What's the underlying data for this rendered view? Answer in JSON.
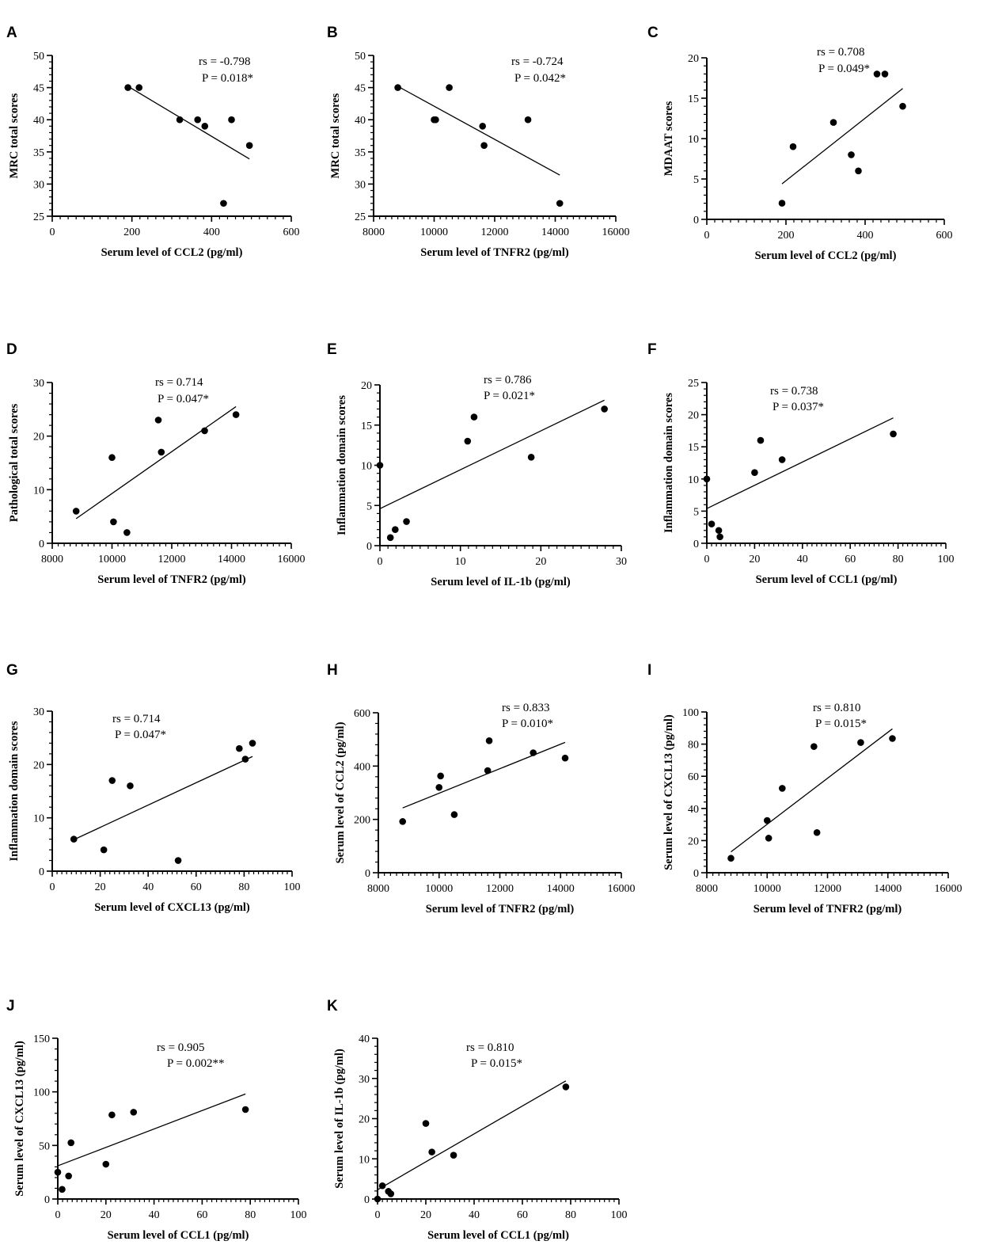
{
  "chart_data": [
    {
      "type": "scatter",
      "panel": "A",
      "xlabel": "Serum level of CCL2 (pg/ml)",
      "ylabel": "MRC total scores",
      "xlim": [
        0,
        600
      ],
      "ylim": [
        25,
        50
      ],
      "xticks": [
        0,
        200,
        400,
        600
      ],
      "yticks": [
        25,
        30,
        35,
        40,
        45,
        50
      ],
      "x": [
        190,
        218,
        320,
        365,
        383,
        450,
        495,
        430
      ],
      "y": [
        45,
        45,
        40,
        40,
        39,
        40,
        36,
        27
      ],
      "fit": {
        "x": [
          190,
          495
        ],
        "y": [
          45.2,
          33.9
        ]
      },
      "rs": "rs = -0.798",
      "p": "P = 0.018*"
    },
    {
      "type": "scatter",
      "panel": "B",
      "xlabel": "Serum level of TNFR2 (pg/ml)",
      "ylabel": "MRC total scores",
      "xlim": [
        8000,
        16000
      ],
      "ylim": [
        25,
        50
      ],
      "xticks": [
        8000,
        10000,
        12000,
        14000,
        16000
      ],
      "yticks": [
        25,
        30,
        35,
        40,
        45,
        50
      ],
      "x": [
        8800,
        10000,
        10050,
        10500,
        11600,
        11650,
        13100,
        14150
      ],
      "y": [
        45,
        40,
        40,
        45,
        39,
        36,
        40,
        27
      ],
      "fit": {
        "x": [
          8800,
          14150
        ],
        "y": [
          45.2,
          31.4
        ]
      },
      "rs": "rs = -0.724",
      "p": "P = 0.042*"
    },
    {
      "type": "scatter",
      "panel": "C",
      "xlabel": "Serum level of CCL2 (pg/ml)",
      "ylabel": "MDAAT  scores",
      "xlim": [
        0,
        600
      ],
      "ylim": [
        0,
        20
      ],
      "xticks": [
        0,
        200,
        400,
        600
      ],
      "yticks": [
        0,
        5,
        10,
        15,
        20
      ],
      "x": [
        190,
        218,
        320,
        365,
        383,
        430,
        450,
        495
      ],
      "y": [
        2,
        9,
        12,
        8,
        6,
        18,
        18,
        14
      ],
      "fit": {
        "x": [
          190,
          495
        ],
        "y": [
          4.4,
          16.2
        ]
      },
      "rs": "rs = 0.708",
      "p": "P = 0.049*"
    },
    {
      "type": "scatter",
      "panel": "D",
      "xlabel": "Serum level of TNFR2 (pg/ml)",
      "ylabel": "Pathological total scores",
      "xlim": [
        8000,
        16000
      ],
      "ylim": [
        0,
        30
      ],
      "xticks": [
        8000,
        10000,
        12000,
        14000,
        16000
      ],
      "yticks": [
        0,
        10,
        20,
        30
      ],
      "x": [
        8800,
        10000,
        10050,
        10500,
        11550,
        11650,
        13100,
        14150
      ],
      "y": [
        6,
        16,
        4,
        2,
        23,
        17,
        21,
        24
      ],
      "fit": {
        "x": [
          8800,
          14150
        ],
        "y": [
          4.6,
          25.5
        ]
      },
      "rs": "rs = 0.714",
      "p": "P = 0.047*"
    },
    {
      "type": "scatter",
      "panel": "E",
      "xlabel": "Serum level of IL-1b (pg/ml)",
      "ylabel": "Inflammation domain scores",
      "xlim": [
        0,
        30
      ],
      "ylim": [
        0,
        20
      ],
      "xticks": [
        0,
        10,
        20,
        30
      ],
      "yticks": [
        0,
        5,
        10,
        15,
        20
      ],
      "x": [
        0,
        1.3,
        1.9,
        3.3,
        10.9,
        11.7,
        18.8,
        27.9
      ],
      "y": [
        10,
        1,
        2,
        3,
        13,
        16,
        11,
        17
      ],
      "fit": {
        "x": [
          0,
          27.9
        ],
        "y": [
          4.6,
          18.1
        ]
      },
      "rs": "rs = 0.786",
      "p": "P = 0.021*"
    },
    {
      "type": "scatter",
      "panel": "F",
      "xlabel": "Serum level of CCL1 (pg/ml)",
      "ylabel": "Inflammation domain scores",
      "xlim": [
        0,
        100
      ],
      "ylim": [
        0,
        25
      ],
      "xticks": [
        0,
        20,
        40,
        60,
        80,
        100
      ],
      "yticks": [
        0,
        5,
        10,
        15,
        20,
        25
      ],
      "x": [
        0,
        2,
        5,
        5.5,
        20,
        22.5,
        31.5,
        78
      ],
      "y": [
        10,
        3,
        2,
        1,
        11,
        16,
        13,
        17
      ],
      "fit": {
        "x": [
          0,
          78
        ],
        "y": [
          5.4,
          19.5
        ]
      },
      "rs": "rs = 0.738",
      "p": "P = 0.037*"
    },
    {
      "type": "scatter",
      "panel": "G",
      "xlabel": "Serum level of CXCL13 (pg/ml)",
      "ylabel": "Inflammation domain scores",
      "xlim": [
        0,
        100
      ],
      "ylim": [
        0,
        30
      ],
      "xticks": [
        0,
        20,
        40,
        60,
        80,
        100
      ],
      "yticks": [
        0,
        10,
        20,
        30
      ],
      "x": [
        9,
        21.5,
        25,
        32.5,
        52.5,
        78,
        80.5,
        83.5
      ],
      "y": [
        6,
        4,
        17,
        16,
        2,
        23,
        21,
        24
      ],
      "fit": {
        "x": [
          9,
          83.5
        ],
        "y": [
          5.9,
          21.5
        ]
      },
      "rs": "rs = 0.714",
      "p": "P = 0.047*"
    },
    {
      "type": "scatter",
      "panel": "H",
      "xlabel": "Serum level of TNFR2 (pg/ml)",
      "ylabel": "Serum level of CCL2 (pg/ml)",
      "xlim": [
        8000,
        16000
      ],
      "ylim": [
        0,
        600
      ],
      "xticks": [
        8000,
        10000,
        12000,
        14000,
        16000
      ],
      "yticks": [
        0,
        200,
        400,
        600
      ],
      "x": [
        8800,
        10000,
        10050,
        10500,
        11600,
        11650,
        13100,
        14150
      ],
      "y": [
        192,
        320,
        363,
        218,
        383,
        495,
        450,
        430
      ],
      "fit": {
        "x": [
          8800,
          14150
        ],
        "y": [
          243,
          489
        ]
      },
      "rs": "rs = 0.833",
      "p": "P = 0.010*"
    },
    {
      "type": "scatter",
      "panel": "I",
      "xlabel": "Serum level of TNFR2 (pg/ml)",
      "ylabel": "Serum level of CXCL13 (pg/ml)",
      "xlim": [
        8000,
        16000
      ],
      "ylim": [
        0,
        100
      ],
      "xticks": [
        8000,
        10000,
        12000,
        14000,
        16000
      ],
      "yticks": [
        0,
        20,
        40,
        60,
        80,
        100
      ],
      "x": [
        8800,
        10000,
        10050,
        10500,
        11550,
        11650,
        13100,
        14150
      ],
      "y": [
        9,
        32.5,
        21.5,
        52.5,
        78.5,
        25,
        81,
        83.5
      ],
      "fit": {
        "x": [
          8800,
          14150
        ],
        "y": [
          13,
          89.5
        ]
      },
      "rs": "rs = 0.810",
      "p": "P = 0.015*"
    },
    {
      "type": "scatter",
      "panel": "J",
      "xlabel": "Serum level of CCL1 (pg/ml)",
      "ylabel": "Serum level of CXCL13 (pg/ml)",
      "xlim": [
        0,
        100
      ],
      "ylim": [
        0,
        150
      ],
      "xticks": [
        0,
        20,
        40,
        60,
        80,
        100
      ],
      "yticks": [
        0,
        50,
        100,
        150
      ],
      "x": [
        0,
        1.8,
        4.5,
        5.5,
        20,
        22.5,
        31.5,
        78
      ],
      "y": [
        25,
        9,
        21.5,
        52.5,
        32.5,
        78.5,
        81,
        83.5
      ],
      "fit": {
        "x": [
          0,
          78
        ],
        "y": [
          31,
          98
        ]
      },
      "rs": "rs = 0.905",
      "p": "P = 0.002**"
    },
    {
      "type": "scatter",
      "panel": "K",
      "xlabel": "Serum level of CCL1 (pg/ml)",
      "ylabel": "Serum level of IL-1b (pg/ml)",
      "xlim": [
        0,
        100
      ],
      "ylim": [
        0,
        40
      ],
      "xticks": [
        0,
        20,
        40,
        60,
        80,
        100
      ],
      "yticks": [
        0,
        10,
        20,
        30,
        40
      ],
      "x": [
        0,
        2,
        4.5,
        5.5,
        20,
        22.5,
        31.5,
        78
      ],
      "y": [
        0,
        3.3,
        1.9,
        1.3,
        18.8,
        11.7,
        10.9,
        27.9
      ],
      "fit": {
        "x": [
          0,
          78
        ],
        "y": [
          2.3,
          29.4
        ]
      },
      "rs": "rs = 0.810",
      "p": "P = 0.015*"
    }
  ]
}
